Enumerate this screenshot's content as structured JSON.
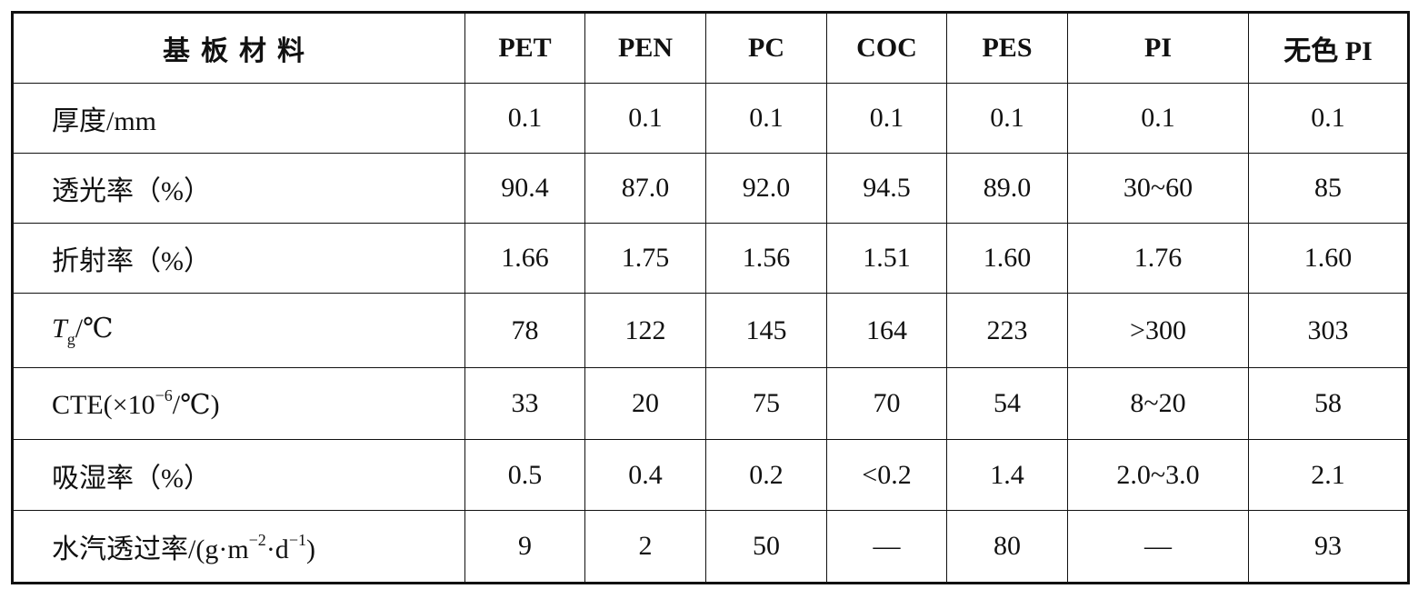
{
  "table": {
    "header": [
      "基板材料",
      "PET",
      "PEN",
      "PC",
      "COC",
      "PES",
      "PI",
      "无色 PI"
    ],
    "rows": [
      {
        "label": [
          "厚度/mm"
        ],
        "values": [
          "0.1",
          "0.1",
          "0.1",
          "0.1",
          "0.1",
          "0.1",
          "0.1"
        ]
      },
      {
        "label": [
          "透光率（%）"
        ],
        "values": [
          "90.4",
          "87.0",
          "92.0",
          "94.5",
          "89.0",
          "30~60",
          "85"
        ]
      },
      {
        "label": [
          "折射率（%）"
        ],
        "values": [
          "1.66",
          "1.75",
          "1.56",
          "1.51",
          "1.60",
          "1.76",
          "1.60"
        ]
      },
      {
        "label": [
          "T",
          "g",
          "/℃"
        ],
        "values": [
          "78",
          "122",
          "145",
          "164",
          "223",
          ">300",
          "303"
        ]
      },
      {
        "label": [
          "CTE(×10",
          "−6",
          "/℃)"
        ],
        "values": [
          "33",
          "20",
          "75",
          "70",
          "54",
          "8~20",
          "58"
        ]
      },
      {
        "label": [
          "吸湿率（%）"
        ],
        "values": [
          "0.5",
          "0.4",
          "0.2",
          "<0.2",
          "1.4",
          "2.0~3.0",
          "2.1"
        ]
      },
      {
        "label": [
          "水汽透过率/(g·m",
          "−2",
          "·d",
          "−1",
          ")"
        ],
        "values": [
          "9",
          "2",
          "50",
          "—",
          "80",
          "—",
          "93"
        ]
      }
    ]
  }
}
